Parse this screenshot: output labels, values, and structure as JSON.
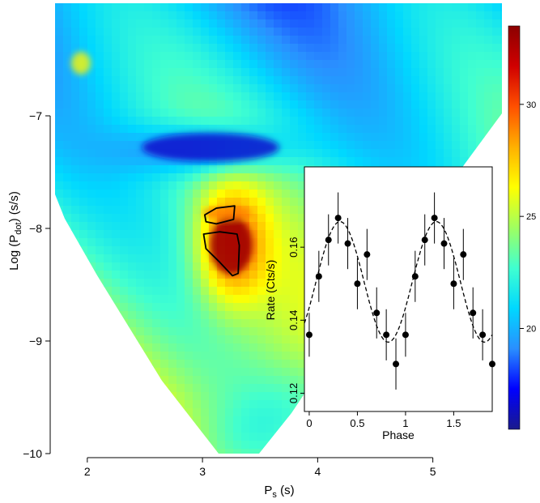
{
  "chart_data": [
    {
      "type": "heatmap",
      "xlabel": "P",
      "xlabel_sub": "s",
      "xlabel_unit": "(s)",
      "ylabel": "Log (P",
      "ylabel_sub": "dot",
      "ylabel_unit": ") (s/s)",
      "xlim": [
        1.72,
        5.6
      ],
      "ylim": [
        -10,
        -6.0
      ],
      "xticks": [
        {
          "value": 2,
          "label": "2"
        },
        {
          "value": 3,
          "label": "3"
        },
        {
          "value": 4,
          "label": "4"
        },
        {
          "value": 5,
          "label": "5"
        }
      ],
      "yticks": [
        {
          "value": -7,
          "label": "−7"
        },
        {
          "value": -8,
          "label": "−8"
        },
        {
          "value": -9,
          "label": "−9"
        },
        {
          "value": -10,
          "label": "−10"
        }
      ],
      "colorbar": {
        "range": [
          15.5,
          33.5
        ],
        "ticks": [
          {
            "value": 20,
            "label": "20"
          },
          {
            "value": 25,
            "label": "25"
          },
          {
            "value": 30,
            "label": "30"
          }
        ],
        "colors": [
          "#1a1a8c",
          "#0000ff",
          "#2a8fff",
          "#00d8ff",
          "#40ffd0",
          "#a0ff60",
          "#ffff00",
          "#ffb000",
          "#ff5000",
          "#d00000",
          "#8b0000"
        ]
      },
      "peak": {
        "x": 3.25,
        "y": -8.15,
        "value": 33
      },
      "contours": [
        {
          "points": [
            [
              3.02,
              -7.88
            ],
            [
              3.12,
              -7.82
            ],
            [
              3.28,
              -7.8
            ],
            [
              3.27,
              -7.92
            ],
            [
              3.12,
              -7.96
            ],
            [
              3.03,
              -7.94
            ]
          ]
        },
        {
          "points": [
            [
              3.01,
              -8.05
            ],
            [
              3.15,
              -8.03
            ],
            [
              3.3,
              -8.05
            ],
            [
              3.32,
              -8.15
            ],
            [
              3.31,
              -8.4
            ],
            [
              3.26,
              -8.42
            ],
            [
              3.15,
              -8.3
            ],
            [
              3.03,
              -8.18
            ]
          ]
        }
      ]
    },
    {
      "type": "line",
      "xlabel": "Phase",
      "ylabel": "Rate (Cts/s)",
      "xlim": [
        -0.05,
        1.9
      ],
      "ylim": [
        0.115,
        0.182
      ],
      "xticks": [
        {
          "value": 0,
          "label": "0"
        },
        {
          "value": 0.5,
          "label": "0.5"
        },
        {
          "value": 1,
          "label": "1"
        },
        {
          "value": 1.5,
          "label": "1.5"
        }
      ],
      "yticks": [
        {
          "value": 0.12,
          "label": "0.12"
        },
        {
          "value": 0.14,
          "label": "0.14"
        },
        {
          "value": 0.16,
          "label": "0.16"
        }
      ],
      "series": [
        {
          "style": "points-with-errors",
          "x": [
            0.0,
            0.1,
            0.2,
            0.3,
            0.4,
            0.5,
            0.6,
            0.7,
            0.8,
            0.9,
            1.0,
            1.1,
            1.2,
            1.3,
            1.4,
            1.5,
            1.6,
            1.7,
            1.8,
            1.9
          ],
          "y": [
            0.136,
            0.152,
            0.162,
            0.168,
            0.161,
            0.15,
            0.158,
            0.142,
            0.136,
            0.128,
            0.136,
            0.152,
            0.162,
            0.168,
            0.161,
            0.15,
            0.158,
            0.142,
            0.136,
            0.128
          ],
          "err": [
            0.006,
            0.007,
            0.007,
            0.007,
            0.007,
            0.007,
            0.007,
            0.007,
            0.007,
            0.007,
            0.006,
            0.007,
            0.007,
            0.007,
            0.007,
            0.007,
            0.007,
            0.007,
            0.007,
            0.007
          ]
        },
        {
          "style": "dashed-model",
          "mean": 0.1505,
          "amplitude": 0.0165,
          "phase_of_max": 0.32
        }
      ]
    }
  ]
}
